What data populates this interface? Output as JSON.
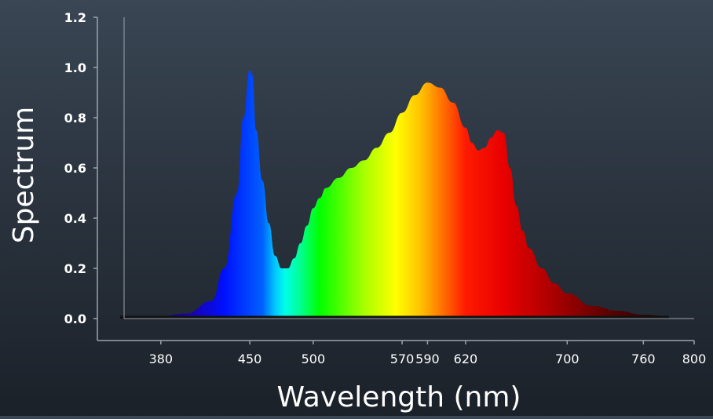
{
  "chart_data": {
    "type": "area",
    "title": "",
    "xlabel": "Wavelength (nm)",
    "ylabel": "Spectrum",
    "xlim": [
      330,
      800
    ],
    "ylim": [
      0,
      1.2
    ],
    "grid": false,
    "legend": "none",
    "x_ticks": [
      380,
      450,
      500,
      570,
      590,
      620,
      700,
      760,
      800
    ],
    "y_ticks": [
      "0.0",
      "0.2",
      "0.4",
      "0.6",
      "0.8",
      "1.0",
      "1.2"
    ],
    "series": [
      {
        "x": [
          348,
          380,
          400,
          420,
          430,
          440,
          445,
          450,
          452,
          455,
          460,
          465,
          470,
          475,
          480,
          485,
          490,
          495,
          500,
          505,
          510,
          520,
          530,
          540,
          550,
          560,
          570,
          580,
          590,
          600,
          610,
          620,
          625,
          630,
          635,
          640,
          645,
          650,
          655,
          660,
          665,
          670,
          680,
          690,
          700,
          720,
          740,
          760,
          780
        ],
        "y": [
          0.01,
          0.01,
          0.02,
          0.07,
          0.2,
          0.5,
          0.8,
          0.99,
          0.97,
          0.75,
          0.55,
          0.38,
          0.25,
          0.2,
          0.2,
          0.24,
          0.3,
          0.37,
          0.44,
          0.48,
          0.52,
          0.56,
          0.6,
          0.63,
          0.68,
          0.74,
          0.82,
          0.89,
          0.94,
          0.92,
          0.86,
          0.76,
          0.7,
          0.67,
          0.68,
          0.72,
          0.75,
          0.74,
          0.6,
          0.45,
          0.35,
          0.28,
          0.2,
          0.14,
          0.1,
          0.05,
          0.03,
          0.015,
          0.01
        ]
      }
    ],
    "colors": {
      "axis": "#9aa3ad",
      "baseline": "#111111",
      "gradient_stops": [
        {
          "nm": 330,
          "color": "#1a0020"
        },
        {
          "nm": 400,
          "color": "#1d00a0"
        },
        {
          "nm": 430,
          "color": "#0010ff"
        },
        {
          "nm": 460,
          "color": "#0060ff"
        },
        {
          "nm": 470,
          "color": "#00c8ff"
        },
        {
          "nm": 478,
          "color": "#00ffe8"
        },
        {
          "nm": 490,
          "color": "#00ff90"
        },
        {
          "nm": 505,
          "color": "#00ff00"
        },
        {
          "nm": 540,
          "color": "#a8ff00"
        },
        {
          "nm": 565,
          "color": "#ffff00"
        },
        {
          "nm": 585,
          "color": "#ffc000"
        },
        {
          "nm": 600,
          "color": "#ff7a00"
        },
        {
          "nm": 620,
          "color": "#ff1a00"
        },
        {
          "nm": 650,
          "color": "#e80000"
        },
        {
          "nm": 690,
          "color": "#a80000"
        },
        {
          "nm": 730,
          "color": "#600000"
        },
        {
          "nm": 780,
          "color": "#200000"
        }
      ]
    }
  }
}
